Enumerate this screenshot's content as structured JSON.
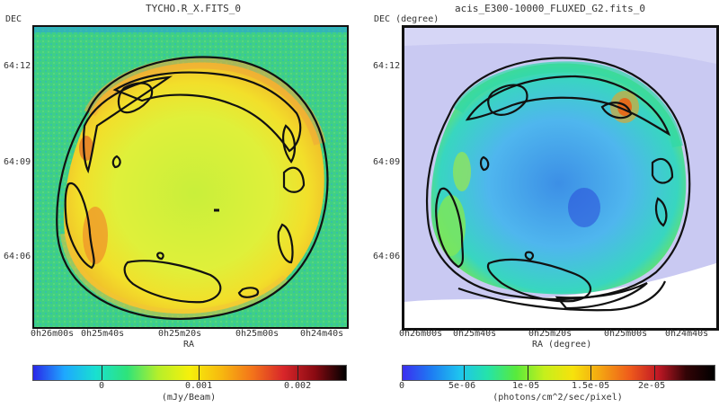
{
  "left": {
    "title": "TYCHO.R_X.FITS_0",
    "y_axis_label": "DEC",
    "x_axis_label": "RA",
    "dec_ticks": [
      "64:12",
      "64:09",
      "64:06"
    ],
    "ra_ticks": [
      "0h26m00s",
      "0h25m40s",
      "0h25m20s",
      "0h25m00s",
      "0h24m40s"
    ],
    "colorbar": {
      "ticks": [
        "0",
        "0.001",
        "0.002"
      ],
      "unit": "(mJy/Beam)",
      "colors": [
        "#2a27e8",
        "#1ea8ff",
        "#19e0d0",
        "#2ee37a",
        "#b6ef2a",
        "#f6f00b",
        "#f7b90f",
        "#f3741a",
        "#d8262a",
        "#8a0a12",
        "#000000"
      ]
    }
  },
  "right": {
    "title": "acis_E300-10000_FLUXED_G2.fits_0",
    "y_axis_label": "DEC (degree)",
    "x_axis_label": "RA (degree)",
    "dec_ticks": [
      "64:12",
      "64:09",
      "64:06"
    ],
    "ra_ticks": [
      "0h26m00s",
      "0h25m40s",
      "0h25m20s",
      "0h25m00s",
      "0h24m40s"
    ],
    "colorbar": {
      "ticks": [
        "0",
        "5e-06",
        "1e-05",
        "1.5e-05",
        "2e-05"
      ],
      "unit": "(photons/cm^2/sec/pixel)",
      "colors": [
        "#3b2ef0",
        "#1e7bf2",
        "#1ec3ef",
        "#25e3a9",
        "#58ea3c",
        "#c6ef1c",
        "#f6e20c",
        "#f4a312",
        "#ef5c1b",
        "#c21825",
        "#320406",
        "#000000"
      ]
    }
  }
}
